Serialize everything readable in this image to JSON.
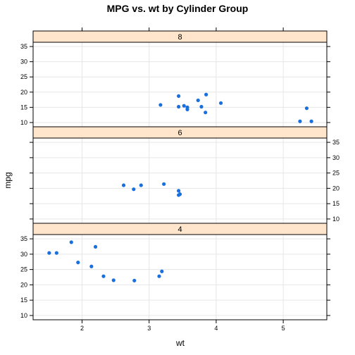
{
  "chart_data": {
    "type": "scatter",
    "title": "MPG vs. wt by Cylinder Group",
    "xlabel": "wt",
    "ylabel": "mpg",
    "xlim": [
      1.27,
      5.65
    ],
    "ylim": [
      8.6,
      36.4
    ],
    "x_ticks": [
      2,
      3,
      4,
      5
    ],
    "y_ticks": [
      10,
      15,
      20,
      25,
      30,
      35
    ],
    "grid": true,
    "colors": {
      "point": "#1a6fdf",
      "strip": "#ffe5cc",
      "grid": "#e6e6e6"
    },
    "panels": [
      {
        "name": "8",
        "points": [
          {
            "x": 3.44,
            "y": 18.7
          },
          {
            "x": 3.57,
            "y": 14.3
          },
          {
            "x": 4.07,
            "y": 16.4
          },
          {
            "x": 3.73,
            "y": 17.3
          },
          {
            "x": 3.78,
            "y": 15.2
          },
          {
            "x": 5.25,
            "y": 10.4
          },
          {
            "x": 5.42,
            "y": 10.4
          },
          {
            "x": 5.35,
            "y": 14.7
          },
          {
            "x": 3.52,
            "y": 15.5
          },
          {
            "x": 3.44,
            "y": 15.2
          },
          {
            "x": 3.84,
            "y": 13.3
          },
          {
            "x": 3.85,
            "y": 19.2
          },
          {
            "x": 3.17,
            "y": 15.8
          },
          {
            "x": 3.57,
            "y": 15.0
          }
        ]
      },
      {
        "name": "6",
        "points": [
          {
            "x": 2.62,
            "y": 21.0
          },
          {
            "x": 2.88,
            "y": 21.0
          },
          {
            "x": 3.22,
            "y": 21.4
          },
          {
            "x": 3.46,
            "y": 18.1
          },
          {
            "x": 3.44,
            "y": 19.2
          },
          {
            "x": 3.44,
            "y": 17.8
          },
          {
            "x": 2.77,
            "y": 19.7
          }
        ]
      },
      {
        "name": "4",
        "points": [
          {
            "x": 2.32,
            "y": 22.8
          },
          {
            "x": 3.19,
            "y": 24.4
          },
          {
            "x": 3.15,
            "y": 22.8
          },
          {
            "x": 2.2,
            "y": 32.4
          },
          {
            "x": 1.62,
            "y": 30.4
          },
          {
            "x": 1.84,
            "y": 33.9
          },
          {
            "x": 2.47,
            "y": 21.5
          },
          {
            "x": 1.94,
            "y": 27.3
          },
          {
            "x": 2.14,
            "y": 26.0
          },
          {
            "x": 1.51,
            "y": 30.4
          },
          {
            "x": 2.78,
            "y": 21.4
          }
        ]
      }
    ]
  }
}
